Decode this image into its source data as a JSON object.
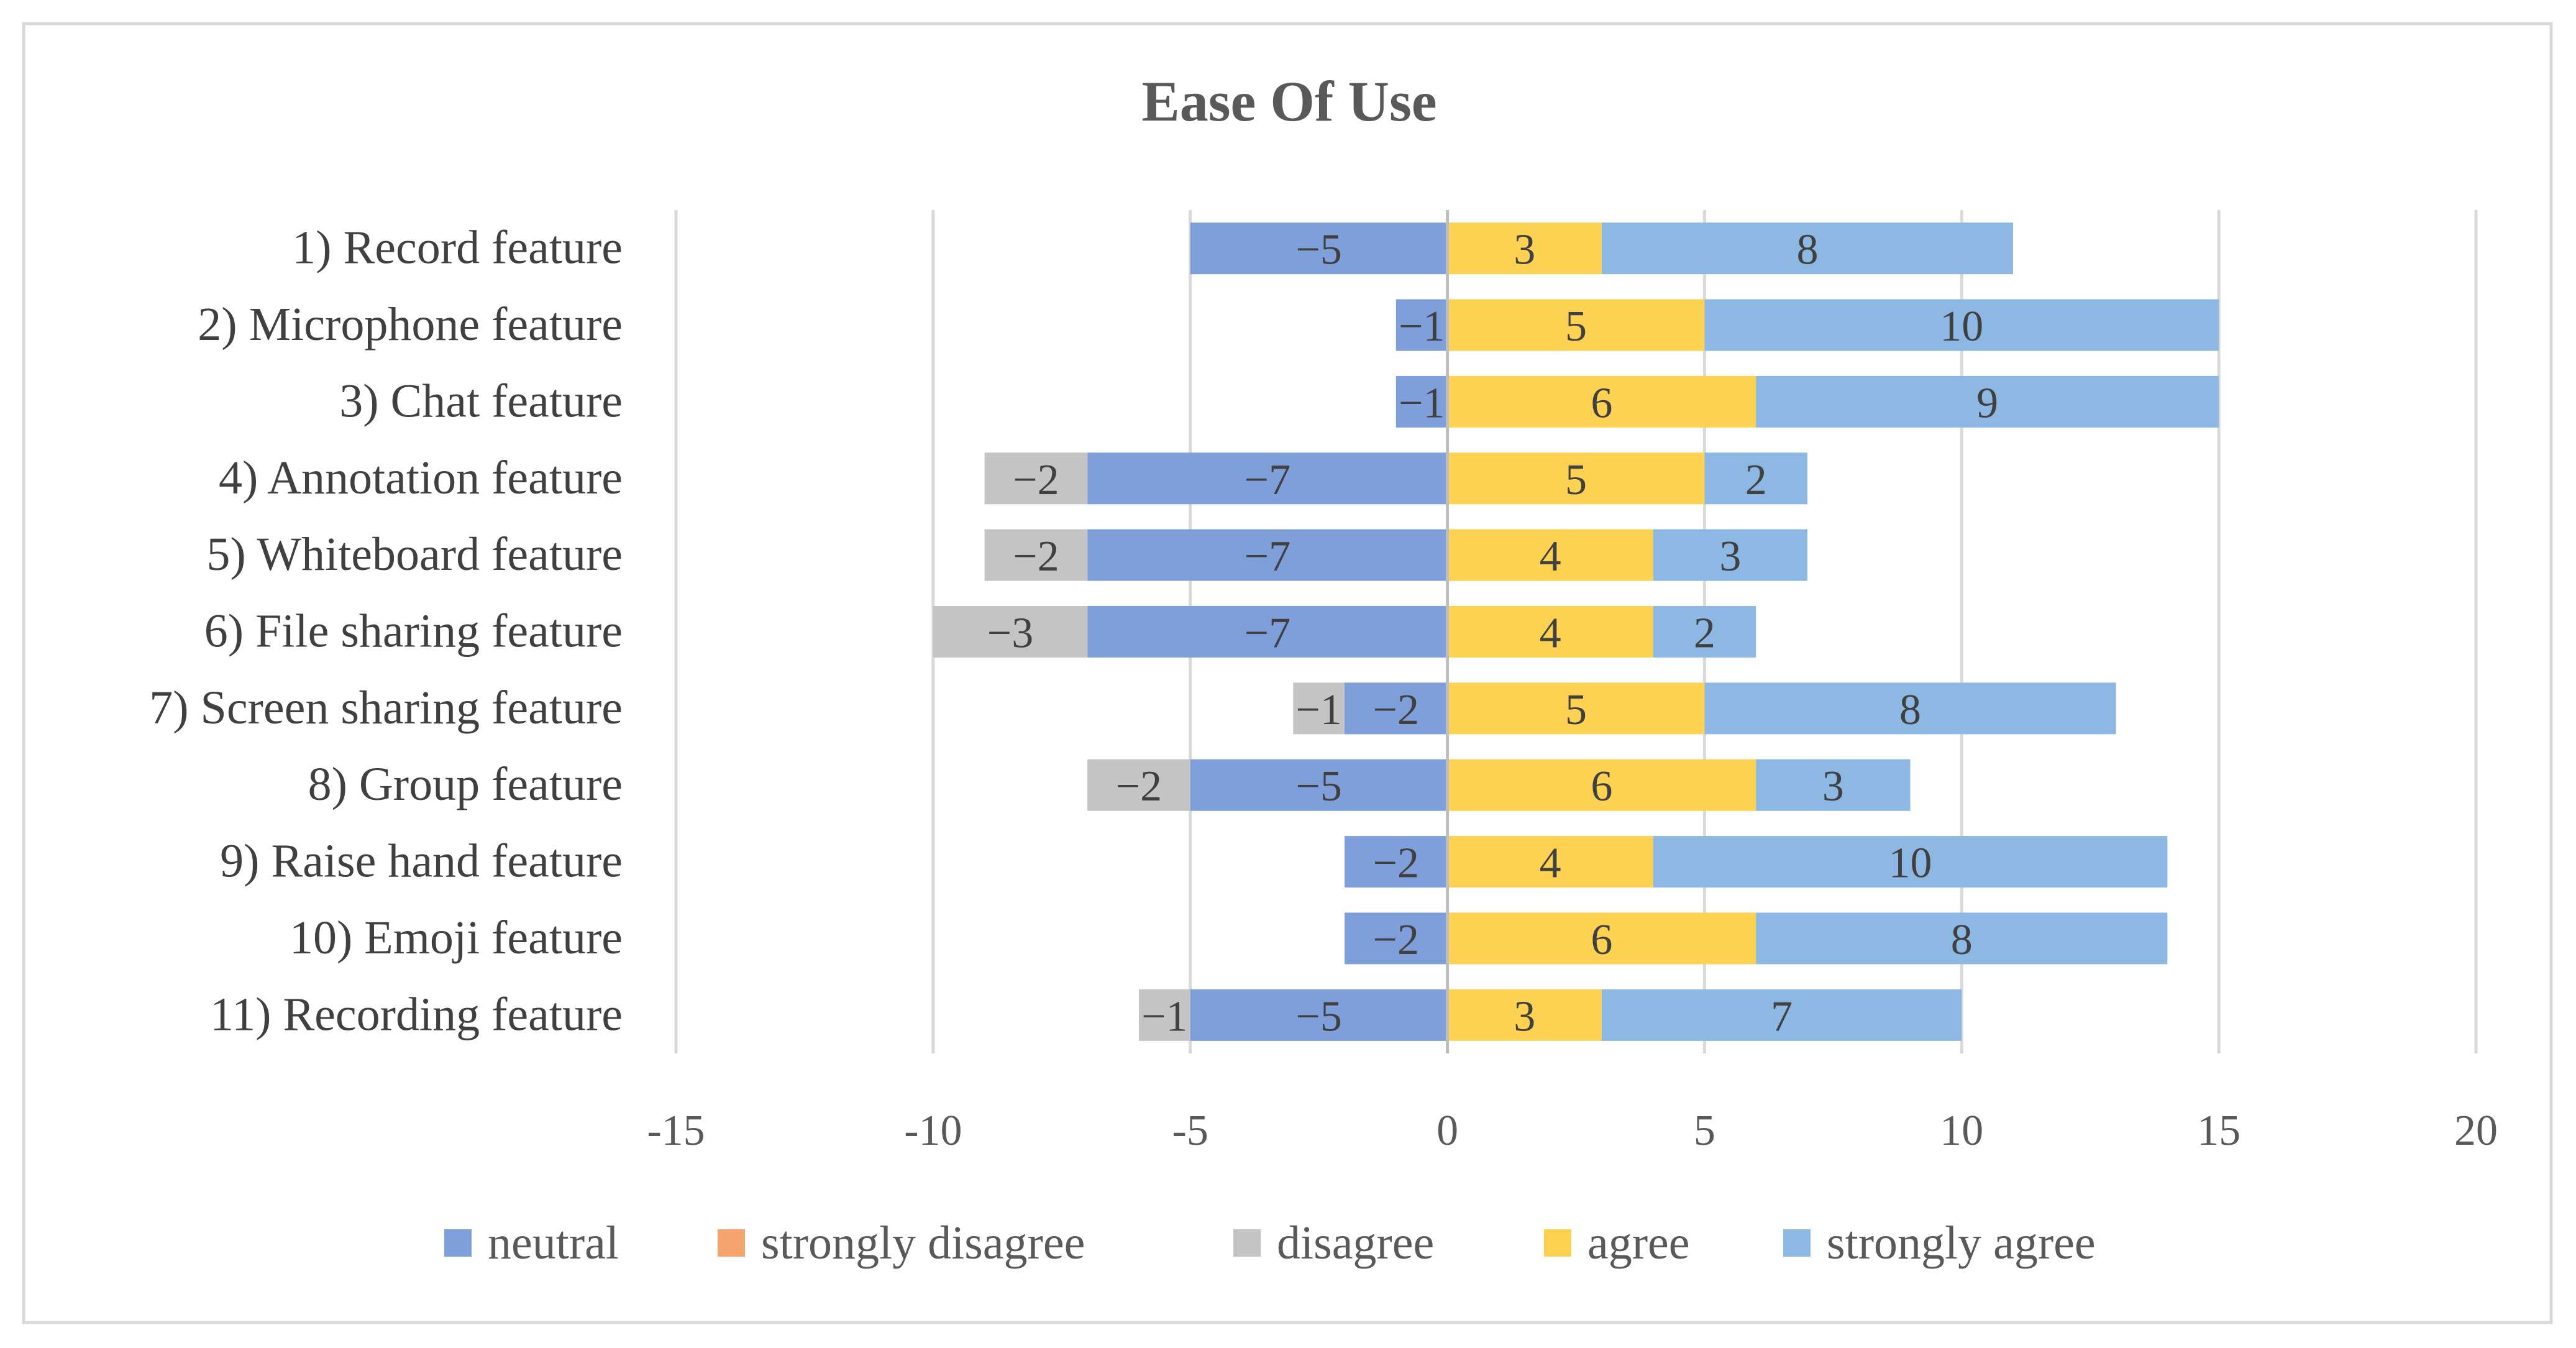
{
  "chart_data": {
    "type": "bar",
    "orientation": "horizontal",
    "stacked": true,
    "diverging": true,
    "title": "Ease Of Use",
    "xlabel": "",
    "ylabel": "",
    "xlim": [
      -15,
      20
    ],
    "xticks": [
      -15,
      -10,
      -5,
      0,
      5,
      10,
      15,
      20
    ],
    "xtick_labels": [
      "-15",
      "-10",
      "-5",
      "0",
      "5",
      "10",
      "15",
      "20"
    ],
    "grid": true,
    "legend_position": "bottom",
    "categories": [
      "1) Record feature",
      "2) Microphone feature",
      "3) Chat feature",
      "4) Annotation feature",
      "5) Whiteboard feature",
      "6) File sharing feature",
      "7) Screen sharing feature",
      "8) Group feature",
      "9) Raise hand feature",
      "10) Emoji feature",
      "11) Recording feature"
    ],
    "series": [
      {
        "name": "neutral",
        "color": "#7e9fd9",
        "values": [
          -5,
          -1,
          -1,
          -7,
          -7,
          -7,
          -2,
          -5,
          -2,
          -2,
          -5
        ],
        "labels": [
          "−5",
          "−1",
          "−1",
          "−7",
          "−7",
          "−7",
          "−2",
          "−5",
          "−2",
          "−2",
          "−5"
        ]
      },
      {
        "name": "strongly disagree",
        "color": "#f4a46c",
        "values": [
          0,
          0,
          0,
          0,
          0,
          0,
          0,
          0,
          0,
          0,
          0
        ],
        "labels": [
          "",
          "",
          "",
          "",
          "",
          "",
          "",
          "",
          "",
          "",
          ""
        ]
      },
      {
        "name": "disagree",
        "color": "#c4c4c4",
        "values": [
          0,
          0,
          0,
          -2,
          -2,
          -3,
          -1,
          -2,
          0,
          0,
          -1
        ],
        "labels": [
          "",
          "",
          "",
          "−2",
          "−2",
          "−3",
          "−1",
          "−2",
          "",
          "",
          "−1"
        ]
      },
      {
        "name": "agree",
        "color": "#fdd152",
        "values": [
          3,
          5,
          6,
          5,
          4,
          4,
          5,
          6,
          4,
          6,
          3
        ],
        "labels": [
          "3",
          "5",
          "6",
          "5",
          "4",
          "4",
          "5",
          "6",
          "4",
          "6",
          "3"
        ]
      },
      {
        "name": "strongly agree",
        "color": "#8cb8e3",
        "values": [
          8,
          10,
          9,
          2,
          3,
          2,
          8,
          3,
          10,
          8,
          7
        ],
        "labels": [
          "8",
          "10",
          "9",
          "2",
          "3",
          "2",
          "8",
          "3",
          "10",
          "8",
          "7"
        ]
      }
    ]
  }
}
